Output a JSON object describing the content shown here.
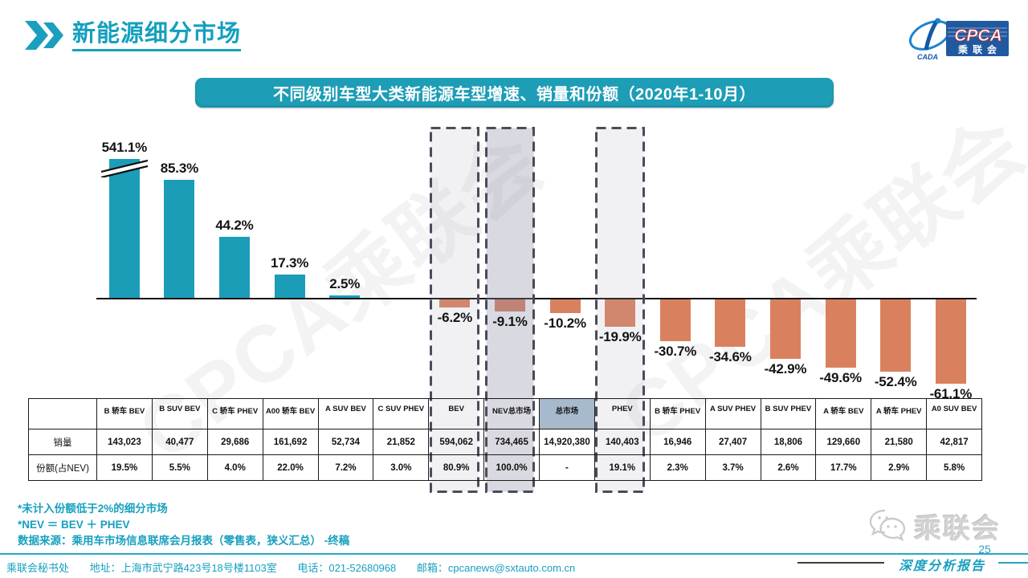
{
  "page": {
    "title": "新能源细分市场",
    "page_number": "25",
    "report_label": "深度分析报告",
    "watermark_text": "CPCA乘联会"
  },
  "logo": {
    "cpca": "CPCA",
    "cada": "CADA",
    "org": "乘联会"
  },
  "footer_logo": {
    "org": "乘联会"
  },
  "banner": {
    "title": "不同级别车型大类新能源车型增速、销量和份额（2020年1-10月）"
  },
  "notes": [
    "*未计入份额低于2%的细分市场",
    "*NEV ＝ BEV ＋ PHEV",
    "数据来源：乘用车市场信息联席会月报表（零售表，狭义汇总）  -终稿"
  ],
  "contact": {
    "items": [
      "乘联会秘书处",
      "地址：上海市武宁路423号18号楼1103室",
      "电话：021-52680968",
      "邮箱：cpcanews@sxtauto.com.cn"
    ]
  },
  "table": {
    "row_labels": [
      "销量",
      "份额(占NEV)"
    ]
  },
  "chart_data": {
    "type": "bar",
    "title": "不同级别车型大类新能源车型增速、销量和份额（2020年1-10月）",
    "categories": [
      "B 轿车 BEV",
      "B SUV BEV",
      "C 轿车 PHEV",
      "A00 轿车 BEV",
      "A SUV BEV",
      "C SUV PHEV",
      "BEV",
      "NEV总市场",
      "总市场",
      "PHEV",
      "B 轿车 PHEV",
      "A SUV PHEV",
      "B SUV PHEV",
      "A 轿车 BEV",
      "A 轿车 PHEV",
      "A0 SUV BEV"
    ],
    "series": [
      {
        "name": "增速",
        "unit": "%",
        "values": [
          541.1,
          85.3,
          44.2,
          17.3,
          2.5,
          null,
          -6.2,
          -9.1,
          -10.2,
          -19.9,
          -30.7,
          -34.6,
          -42.9,
          -49.6,
          -52.4,
          -61.1
        ]
      },
      {
        "name": "销量",
        "values": [
          "143,023",
          "40,477",
          "29,686",
          "161,692",
          "52,734",
          "21,852",
          "594,062",
          "734,465",
          "14,920,380",
          "140,403",
          "16,946",
          "27,407",
          "18,806",
          "129,660",
          "21,580",
          "42,817"
        ]
      },
      {
        "name": "份额(占NEV)",
        "values": [
          "19.5%",
          "5.5%",
          "4.0%",
          "22.0%",
          "7.2%",
          "3.0%",
          "80.9%",
          "100.0%",
          "-",
          "19.1%",
          "2.3%",
          "3.7%",
          "2.6%",
          "17.7%",
          "2.9%",
          "5.8%"
        ]
      }
    ],
    "axis_break": {
      "category": "B 轿车 BEV",
      "note": "bar truncated, value 541.1% shown with break marks"
    },
    "highlight_boxes": [
      {
        "category": "BEV",
        "shade": "light"
      },
      {
        "category": "NEV总市场",
        "shade": "dark"
      },
      {
        "category": "PHEV",
        "shade": "light"
      }
    ],
    "table_header_highlight": "总市场",
    "legend_position": "none",
    "grid": false,
    "colors": {
      "positive_bar": "#1b9db8",
      "negative_bar": "#d9815f",
      "highlight_header_fill": "#a7b9cc",
      "dashed_box_border": "#4b4b5a",
      "accent_teal": "#17a0be"
    }
  }
}
